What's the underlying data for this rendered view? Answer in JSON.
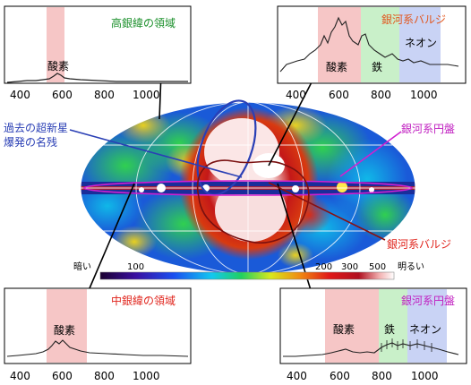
{
  "colors": {
    "oxygen_band": "#f6c6c6",
    "iron_band": "#c9f0c9",
    "neon_band": "#c9d3f5",
    "green_label": "#1a8f2a",
    "orange_label": "#e2561d",
    "magenta_label": "#c01ec0",
    "red_label": "#e0241c",
    "blue_label": "#2a3fb5"
  },
  "axis_ticks": [
    "400",
    "600",
    "800",
    "1000"
  ],
  "panels": {
    "high_latitude": {
      "title": "高銀緯の領域",
      "bands": [
        {
          "label": "酸素",
          "kind": "oxygen"
        }
      ],
      "spectrum": "flat_oxygen_bump"
    },
    "bulge": {
      "title": "銀河系バルジ",
      "bands": [
        {
          "label": "酸素",
          "kind": "oxygen"
        },
        {
          "label": "鉄",
          "kind": "iron"
        },
        {
          "label": "ネオン",
          "kind": "neon"
        }
      ],
      "spectrum": "strong_bulge"
    },
    "mid_latitude": {
      "title": "中銀緯の領域",
      "bands": [
        {
          "label": "酸素",
          "kind": "oxygen"
        }
      ],
      "spectrum": "mid_oxygen"
    },
    "disk": {
      "title": "銀河系円盤",
      "bands": [
        {
          "label": "酸素",
          "kind": "oxygen"
        },
        {
          "label": "鉄",
          "kind": "iron"
        },
        {
          "label": "ネオン",
          "kind": "neon"
        }
      ],
      "spectrum": "disk_errorbars"
    }
  },
  "map_labels": {
    "supernova_remnant_line1": "過去の超新星",
    "supernova_remnant_line2": "爆発の名残",
    "galactic_disk": "銀河系円盤",
    "galactic_bulge": "銀河系バルジ"
  },
  "colorbar": {
    "dark_label": "暗い",
    "ticks": [
      "100",
      "200",
      "300",
      "500"
    ],
    "bright_label": "明るい"
  }
}
